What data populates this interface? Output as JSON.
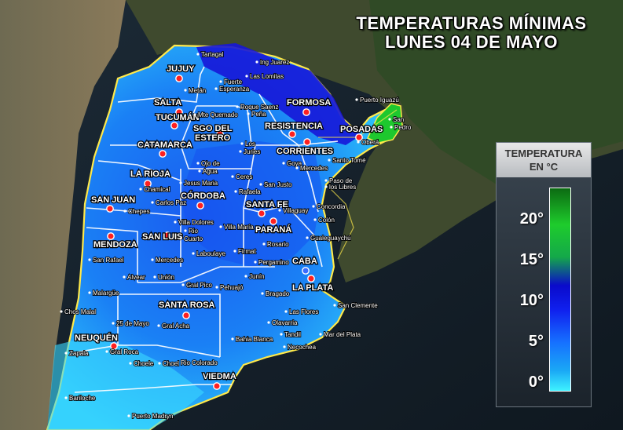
{
  "title": {
    "line1": "TEMPERATURAS MÍNIMAS",
    "line2": "LUNES 04 DE MAYO"
  },
  "legend": {
    "heading_line1": "TEMPERATURA",
    "heading_line2": "EN °C",
    "ticks": [
      "20°",
      "15°",
      "10°",
      "5°",
      "0°"
    ],
    "colors": {
      "0": "#3ef2ff",
      "5": "#1a8af5",
      "10": "#1020ee",
      "15": "#14a84a",
      "20": "#0c6a12"
    }
  },
  "capitals": [
    {
      "label": "JUJUY"
    },
    {
      "label": "SALTA"
    },
    {
      "label": "TUCUMÁN"
    },
    {
      "label": "SGO DEL"
    },
    {
      "label": "ESTERO"
    },
    {
      "label": "CATAMARCA"
    },
    {
      "label": "FORMOSA"
    },
    {
      "label": "RESISTENCIA"
    },
    {
      "label": "CORRIENTES"
    },
    {
      "label": "POSADAS"
    },
    {
      "label": "LA RIOJA"
    },
    {
      "label": "SAN JUAN"
    },
    {
      "label": "CÓRDOBA"
    },
    {
      "label": "SANTA FE"
    },
    {
      "label": "PARANÁ"
    },
    {
      "label": "MENDOZA"
    },
    {
      "label": "SAN LUIS"
    },
    {
      "label": "CABA"
    },
    {
      "label": "LA PLATA"
    },
    {
      "label": "SANTA ROSA"
    },
    {
      "label": "NEUQUÉN"
    },
    {
      "label": "VIEDMA"
    }
  ],
  "towns": [
    {
      "label": "Tartagal"
    },
    {
      "label": "Ing Juarez"
    },
    {
      "label": "Las Lomitas"
    },
    {
      "label": "Metán"
    },
    {
      "label": "Fuerte"
    },
    {
      "label": "Esperanza"
    },
    {
      "label": "Puerto Iguazú"
    },
    {
      "label": "Roque Saenz"
    },
    {
      "label": "Peña"
    },
    {
      "label": "Mte Quemado"
    },
    {
      "label": "San"
    },
    {
      "label": "Pedro"
    },
    {
      "label": "Oberá"
    },
    {
      "label": "Los"
    },
    {
      "label": "Juries"
    },
    {
      "label": "Santo Tomé"
    },
    {
      "label": "Goya"
    },
    {
      "label": "Mercedes"
    },
    {
      "label": "Ojo de"
    },
    {
      "label": "Agua"
    },
    {
      "label": "Ceres"
    },
    {
      "label": "Paso de"
    },
    {
      "label": "los Libres"
    },
    {
      "label": "Chamical"
    },
    {
      "label": "Jesus Maria"
    },
    {
      "label": "Rafaela"
    },
    {
      "label": "San Justo"
    },
    {
      "label": "Chepes"
    },
    {
      "label": "Carlos Paz"
    },
    {
      "label": "Concordia"
    },
    {
      "label": "Villaguay"
    },
    {
      "label": "Colón"
    },
    {
      "label": "Villa Dolores"
    },
    {
      "label": "Rio"
    },
    {
      "label": "Cuarto"
    },
    {
      "label": "Villa María"
    },
    {
      "label": "Gualeguaychú"
    },
    {
      "label": "Rosario"
    },
    {
      "label": "San Rafael"
    },
    {
      "label": "Mercedes"
    },
    {
      "label": "Laboulaye"
    },
    {
      "label": "Firmat"
    },
    {
      "label": "Pergamino"
    },
    {
      "label": "Alvear"
    },
    {
      "label": "Unión"
    },
    {
      "label": "Junín"
    },
    {
      "label": "Gral Pico"
    },
    {
      "label": "Pehuajó"
    },
    {
      "label": "Malargüe"
    },
    {
      "label": "Bragado"
    },
    {
      "label": "San Clemente"
    },
    {
      "label": "Chos Malal"
    },
    {
      "label": "Las Flores"
    },
    {
      "label": "25 de Mayo"
    },
    {
      "label": "Gral Acha"
    },
    {
      "label": "Olavarria"
    },
    {
      "label": "Tandil"
    },
    {
      "label": "Mar del Plata"
    },
    {
      "label": "Zapala"
    },
    {
      "label": "Gral Roca"
    },
    {
      "label": "Bahia Blanca"
    },
    {
      "label": "Necochea"
    },
    {
      "label": "Rio Colorado"
    },
    {
      "label": "Choele"
    },
    {
      "label": "Choel"
    },
    {
      "label": "Bariloche"
    },
    {
      "label": "Puerto Madryn"
    }
  ]
}
